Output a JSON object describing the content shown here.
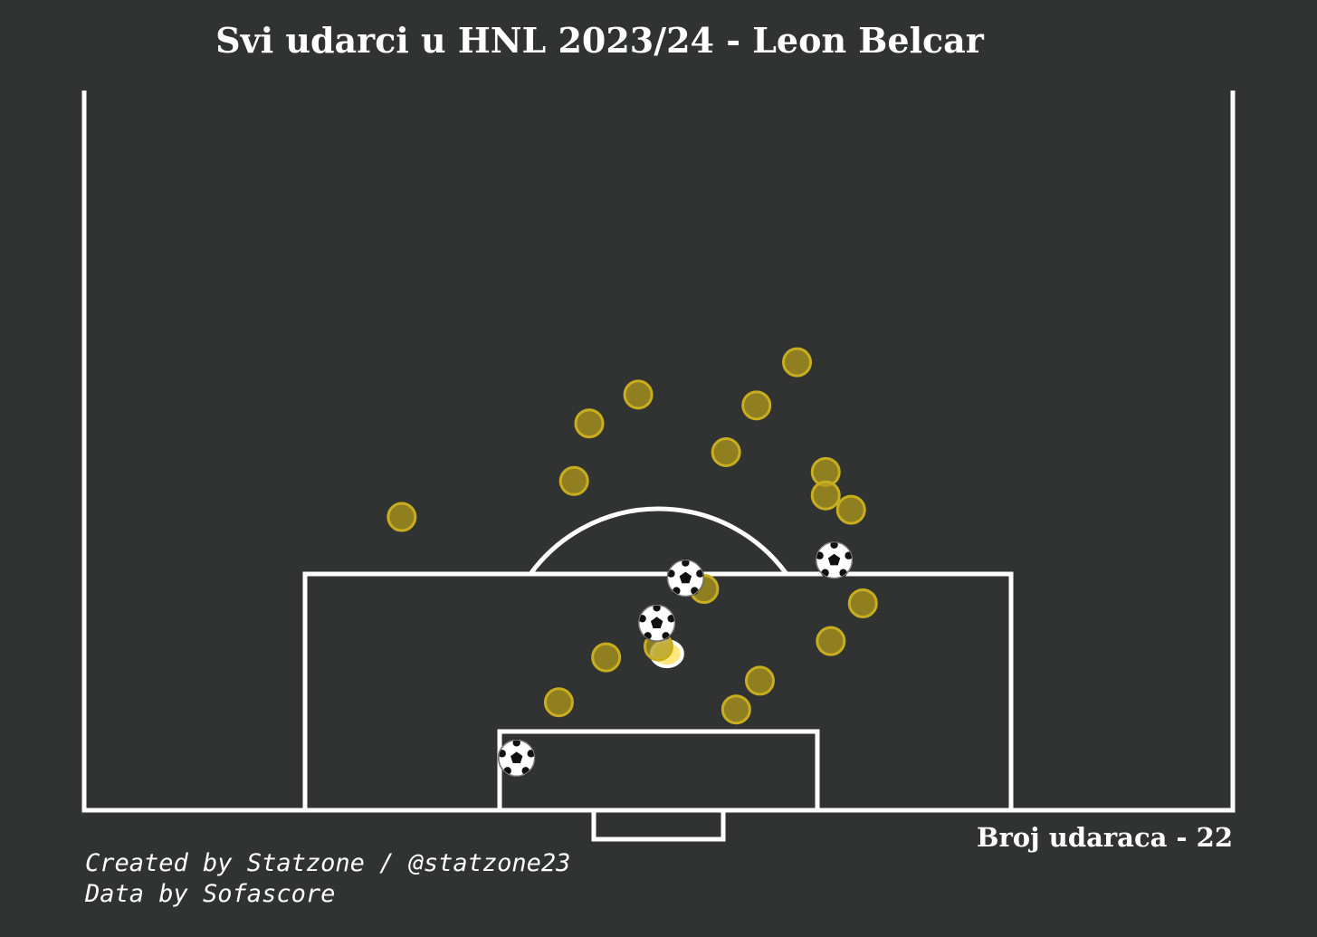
{
  "title": "Svi udarci u HNL 2023/24 - Leon Belcar",
  "shot_count_label": "Broj udaraca - 22",
  "credits": {
    "created": "Created by Statzone / @statzone23",
    "data": "Data by Sofascore"
  },
  "colors": {
    "background": "#313332",
    "lines": "#ffffff",
    "shot_fill": "#b09a1c",
    "shot_edge": "#c8ae1e",
    "highlight": "#ffe680"
  },
  "chart_data": {
    "type": "scatter",
    "pitch": "half-pitch vertical, attacking goal at bottom",
    "x_axis": "pitch width (0-68)",
    "y_axis": "distance from goal line (0-40)",
    "xlim": [
      0,
      68
    ],
    "ylim": [
      0,
      40
    ],
    "series": [
      {
        "marker": "circle",
        "points": [
          {
            "x": 18.8,
            "y": 16.3
          },
          {
            "x": 29.0,
            "y": 18.3
          },
          {
            "x": 29.9,
            "y": 21.5
          },
          {
            "x": 32.8,
            "y": 23.1
          },
          {
            "x": 38.0,
            "y": 19.9
          },
          {
            "x": 39.8,
            "y": 22.5
          },
          {
            "x": 42.2,
            "y": 24.9
          },
          {
            "x": 43.9,
            "y": 18.8
          },
          {
            "x": 43.9,
            "y": 17.5
          },
          {
            "x": 45.4,
            "y": 16.7
          },
          {
            "x": 36.7,
            "y": 12.3
          },
          {
            "x": 46.1,
            "y": 11.5
          },
          {
            "x": 44.2,
            "y": 9.4
          },
          {
            "x": 34.0,
            "y": 9.1
          },
          {
            "x": 30.9,
            "y": 8.5
          },
          {
            "x": 28.1,
            "y": 6.0
          },
          {
            "x": 40.0,
            "y": 7.2
          },
          {
            "x": 38.6,
            "y": 5.6
          }
        ]
      },
      {
        "marker": "ball",
        "points": [
          {
            "x": 35.6,
            "y": 12.9
          },
          {
            "x": 44.4,
            "y": 13.9
          },
          {
            "x": 33.9,
            "y": 10.4
          },
          {
            "x": 25.6,
            "y": 2.9
          }
        ]
      }
    ],
    "highlighted_point": {
      "x": 34.5,
      "y": 8.7
    }
  }
}
